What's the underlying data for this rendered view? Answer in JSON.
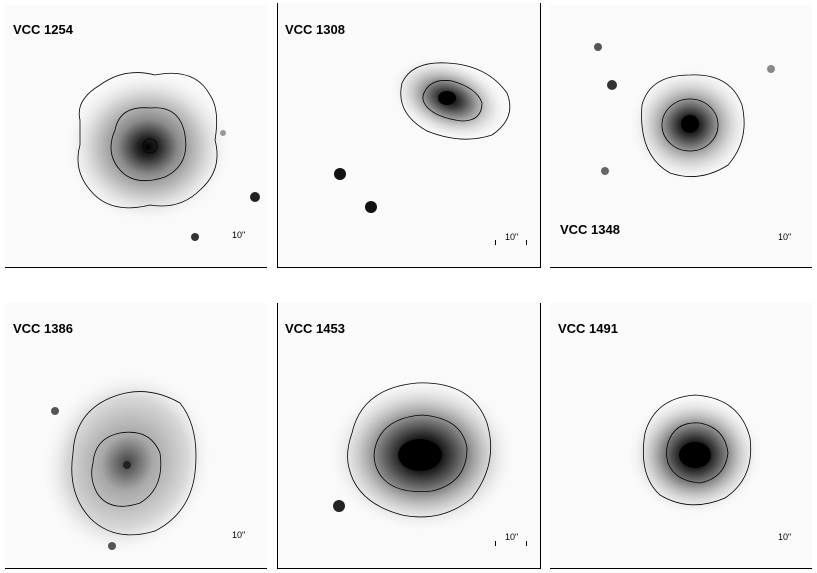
{
  "panels": [
    {
      "label": "VCC 1254",
      "scale": "10\""
    },
    {
      "label": "VCC 1308",
      "scale": "10\""
    },
    {
      "label": "VCC 1348",
      "scale": "10\""
    },
    {
      "label": "VCC 1386",
      "scale": "10\""
    },
    {
      "label": "VCC 1453",
      "scale": "10\""
    },
    {
      "label": "VCC 1491",
      "scale": "10\""
    }
  ],
  "colors": {
    "background": "#ffffff",
    "ink": "#000000"
  }
}
